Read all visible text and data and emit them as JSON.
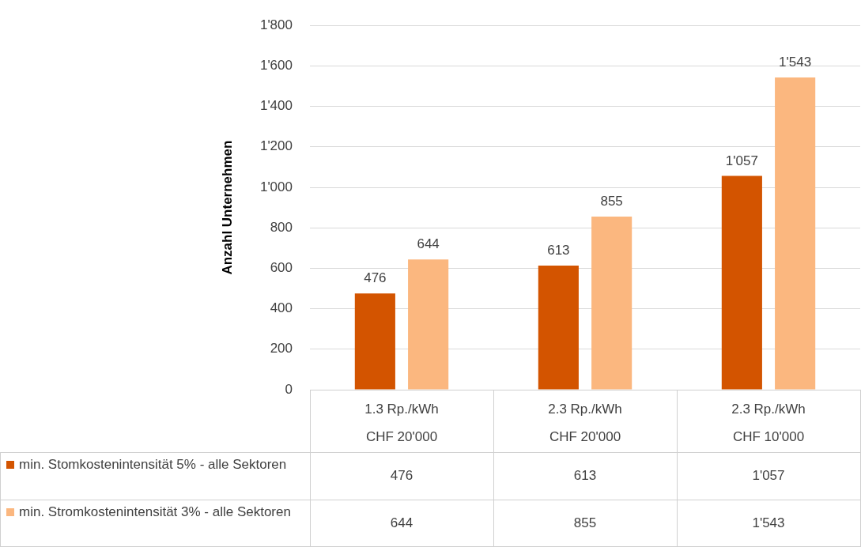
{
  "chart_data": {
    "type": "bar",
    "ylabel": "Anzahl Unternehmen",
    "categories": [
      "1.3 Rp./kWh\nCHF 20'000",
      "2.3 Rp./kWh\nCHF 20'000",
      "2.3 Rp./kWh\nCHF 10'000"
    ],
    "series": [
      {
        "name": "min. Stomkostenintensität 5% - alle Sektoren",
        "color": "#d35400",
        "values": [
          476,
          613,
          1057
        ],
        "value_labels": [
          "476",
          "613",
          "1'057"
        ]
      },
      {
        "name": "min. Stromkostenintensität 3% - alle Sektoren",
        "color": "#fbb77f",
        "values": [
          644,
          855,
          1543
        ],
        "value_labels": [
          "644",
          "855",
          "1'543"
        ]
      }
    ],
    "ylim": [
      0,
      1800
    ],
    "yticks": [
      0,
      {
        "value": 200,
        "label": "200"
      },
      {
        "value": 400,
        "label": "400"
      },
      {
        "value": 600,
        "label": "600"
      },
      {
        "value": 800,
        "label": "800"
      },
      {
        "value": 1000,
        "label": "1'000"
      },
      {
        "value": 1200,
        "label": "1'200"
      },
      {
        "value": 1400,
        "label": "1'400"
      },
      {
        "value": 1600,
        "label": "1'600"
      },
      {
        "value": 1800,
        "label": "1'800"
      }
    ],
    "grid": "y",
    "legend": "bottom"
  }
}
